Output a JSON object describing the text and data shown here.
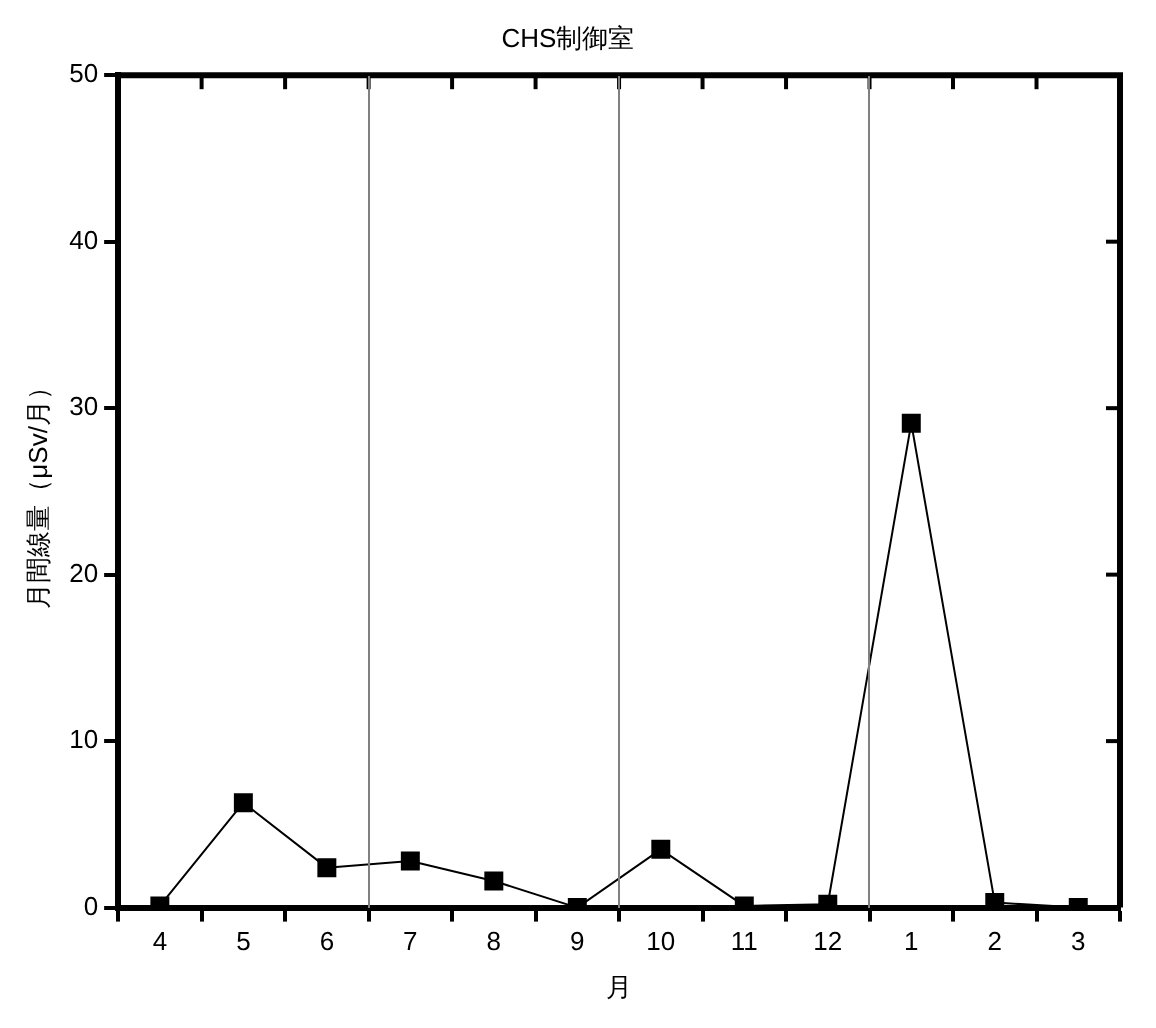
{
  "chart_data": {
    "type": "line",
    "title": "CHS制御室",
    "xlabel": "月",
    "ylabel": "月間線量（μSv/月）",
    "categories": [
      "4",
      "5",
      "6",
      "7",
      "8",
      "9",
      "10",
      "11",
      "12",
      "1",
      "2",
      "3"
    ],
    "series": [
      {
        "color": "#000000",
        "values": [
          0.1,
          6.3,
          2.4,
          2.8,
          1.6,
          0,
          3.5,
          0.1,
          0.2,
          29.1,
          0.3,
          0
        ]
      }
    ],
    "ylim": [
      0,
      50
    ],
    "yticks": [
      0,
      10,
      20,
      30,
      40,
      50
    ],
    "grid": false,
    "legend": false,
    "marker": "square",
    "line_style": "solid"
  }
}
